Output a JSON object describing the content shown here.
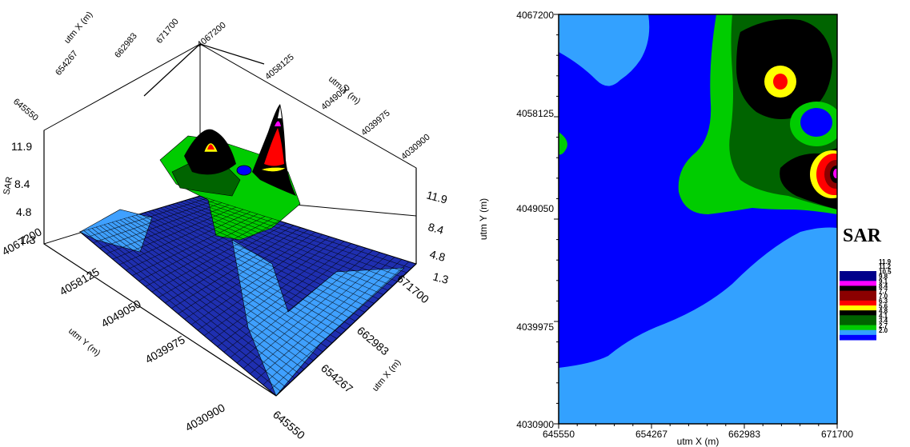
{
  "chart_data": [
    {
      "type": "surface",
      "zlabel": "SAR",
      "xlabel": "utm X (m)",
      "ylabel": "utm Y (m)",
      "x_ticks": [
        "645550",
        "654267",
        "662983",
        "671700"
      ],
      "y_ticks": [
        "4030900",
        "4039975",
        "4049050",
        "4058125",
        "4067200"
      ],
      "z_ticks": [
        "1.3",
        "4.8",
        "8.4",
        "11.9"
      ],
      "z_range": [
        1.3,
        11.9
      ],
      "peaks": [
        {
          "x": 668000,
          "y": 4061000,
          "z": 6.8
        },
        {
          "x": 671500,
          "y": 4053000,
          "z": 11.9
        }
      ]
    },
    {
      "type": "contour",
      "xlabel": "utm X (m)",
      "ylabel": "utm Y (m)",
      "x_ticks": [
        "645550",
        "654267",
        "662983",
        "671700"
      ],
      "y_ticks": [
        "4030900",
        "4039975",
        "4049050",
        "4058125",
        "4067200"
      ],
      "xlim": [
        645550,
        671700
      ],
      "ylim": [
        4030900,
        4067200
      ],
      "legend_title": "SAR",
      "levels": [
        "11.9",
        "11.2",
        "10.5",
        "9.8",
        "9.1",
        "8.4",
        "7.7",
        "7.0",
        "6.3",
        "5.6",
        "4.8",
        "4.1",
        "3.4",
        "2.7",
        "2.0"
      ],
      "level_colors": [
        "#00008b",
        "#ff00ff",
        "#000000",
        "#8b0000",
        "#ff0000",
        "#ffff00",
        "#000000",
        "#006400",
        "#00cc00",
        "#33a1ff",
        "#0000ff"
      ]
    }
  ]
}
